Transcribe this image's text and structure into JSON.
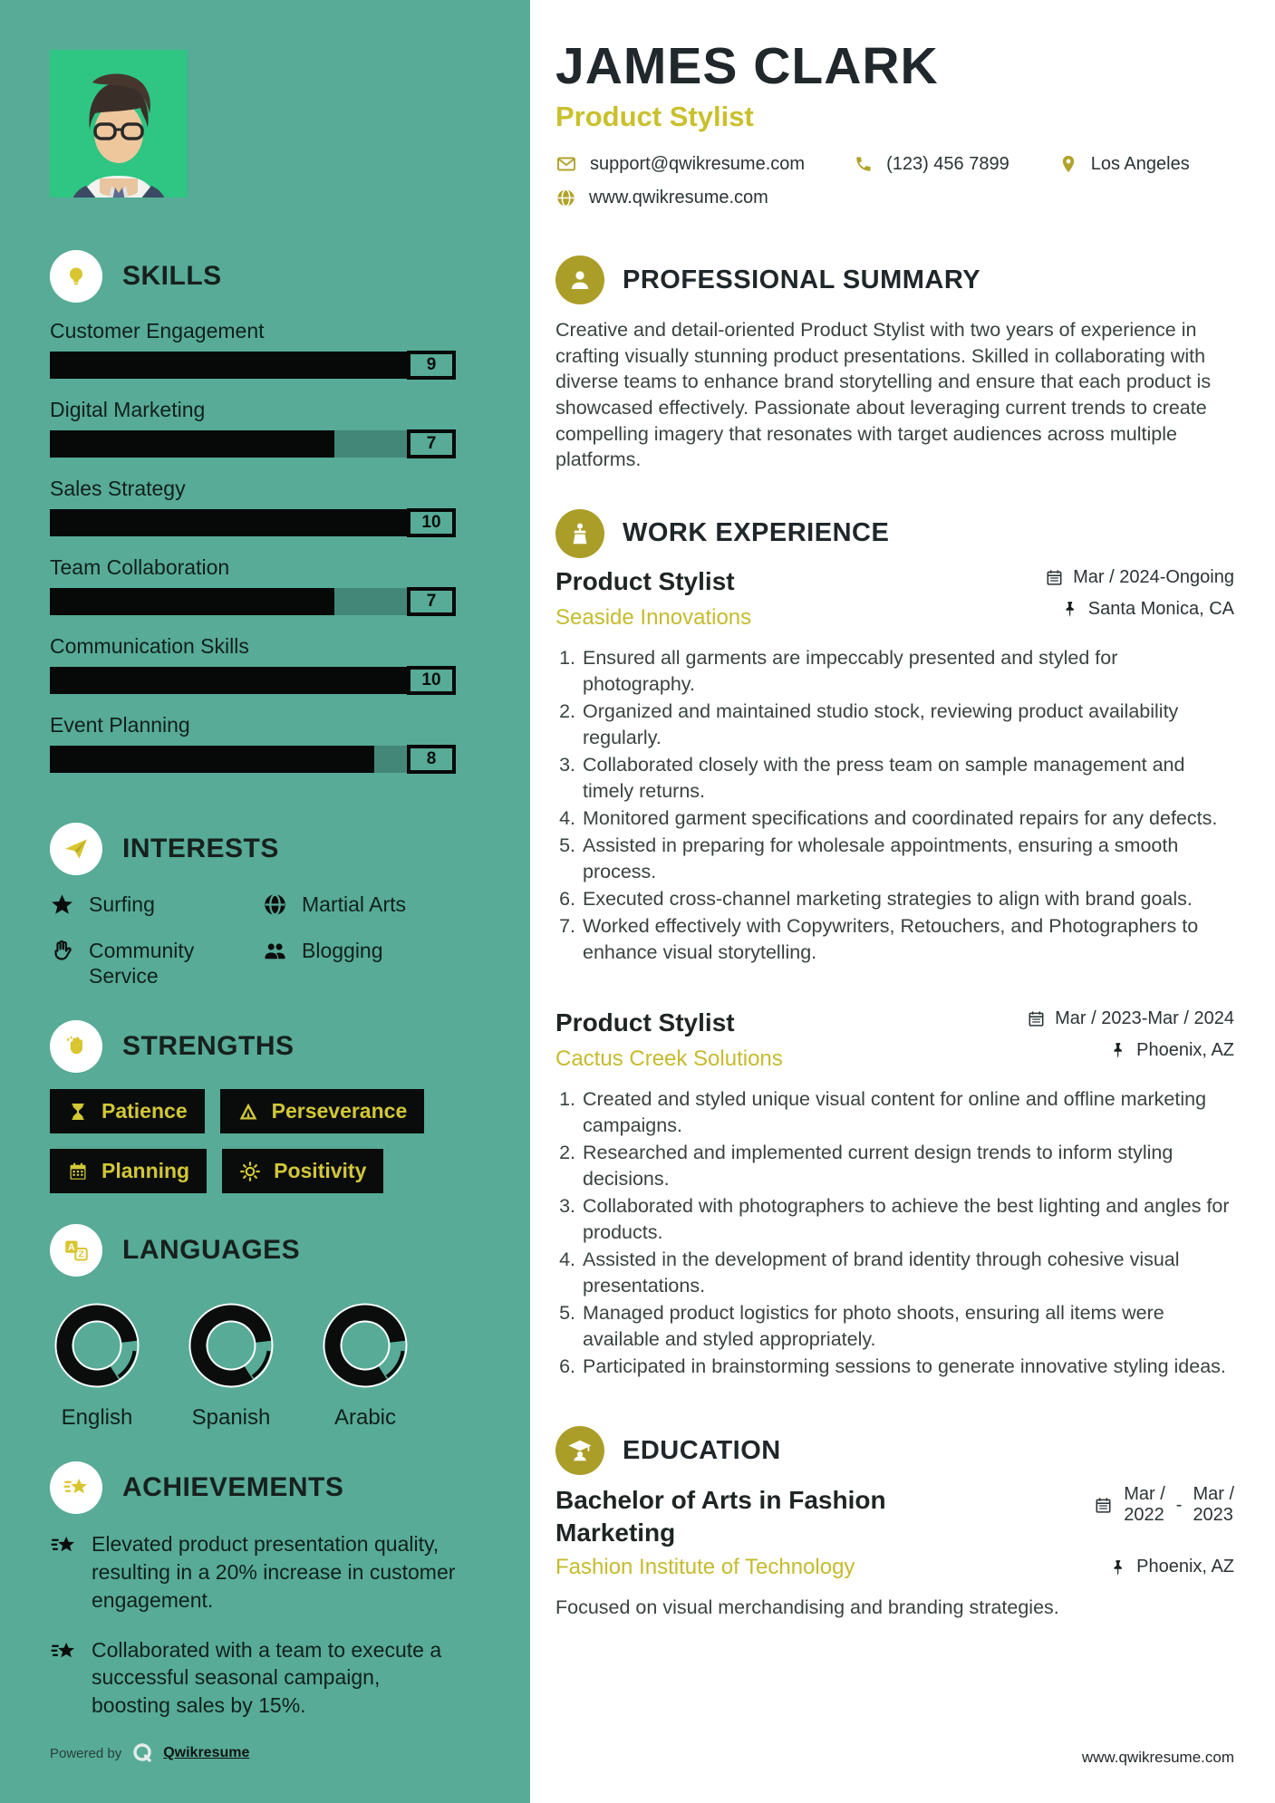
{
  "colors": {
    "sidebar_bg": "#57ab97",
    "accent_yellow": "#c9bf2e",
    "accent_olive": "#ab9e28",
    "bar_black": "#0a0c0b",
    "photo_green": "#2fc583"
  },
  "header": {
    "name": "JAMES CLARK",
    "title": "Product Stylist",
    "email": "support@qwikresume.com",
    "phone": "(123) 456 7899",
    "location": "Los Angeles",
    "website": "www.qwikresume.com"
  },
  "sidebar": {
    "skills": {
      "title": "SKILLS",
      "items": [
        {
          "label": "Customer Engagement",
          "score": 9
        },
        {
          "label": "Digital Marketing",
          "score": 7
        },
        {
          "label": "Sales Strategy",
          "score": 10
        },
        {
          "label": "Team Collaboration",
          "score": 7
        },
        {
          "label": "Communication Skills",
          "score": 10
        },
        {
          "label": "Event Planning",
          "score": 8
        }
      ]
    },
    "interests": {
      "title": "INTERESTS",
      "items": [
        {
          "icon": "star-icon",
          "label": "Surfing"
        },
        {
          "icon": "globe-icon",
          "label": "Martial Arts"
        },
        {
          "icon": "hand-icon",
          "label": "Community Service"
        },
        {
          "icon": "users-icon",
          "label": "Blogging"
        }
      ]
    },
    "strengths": {
      "title": "STRENGTHS",
      "items": [
        {
          "icon": "hourglass-icon",
          "label": "Patience"
        },
        {
          "icon": "road-sign-icon",
          "label": "Perseverance"
        },
        {
          "icon": "calendar-icon",
          "label": "Planning"
        },
        {
          "icon": "sun-icon",
          "label": "Positivity"
        }
      ]
    },
    "languages": {
      "title": "LANGUAGES",
      "items": [
        {
          "label": "English",
          "percent": 84
        },
        {
          "label": "Spanish",
          "percent": 84
        },
        {
          "label": "Arabic",
          "percent": 84
        }
      ]
    },
    "achievements": {
      "title": "ACHIEVEMENTS",
      "items": [
        "Elevated product presentation quality, resulting in a 20% increase in customer engagement.",
        "Collaborated with a team to execute a successful seasonal campaign, boosting sales by 15%."
      ]
    },
    "footer": {
      "powered_by": "Powered by",
      "brand": "Qwikresume"
    }
  },
  "summary": {
    "title": "PROFESSIONAL SUMMARY",
    "text": "Creative and detail-oriented Product Stylist with two years of experience in crafting visually stunning product presentations. Skilled in collaborating with diverse teams to enhance brand storytelling and ensure that each product is showcased effectively. Passionate about leveraging current trends to create compelling imagery that resonates with target audiences across multiple platforms."
  },
  "experience": {
    "title": "WORK EXPERIENCE",
    "jobs": [
      {
        "role": "Product Stylist",
        "dates": "Mar / 2024-Ongoing",
        "company": "Seaside Innovations",
        "location": "Santa Monica, CA",
        "bullets": [
          "Ensured all garments are impeccably presented and styled for photography.",
          "Organized and maintained studio stock, reviewing product availability regularly.",
          "Collaborated closely with the press team on sample management and timely returns.",
          "Monitored garment specifications and coordinated repairs for any defects.",
          "Assisted in preparing for wholesale appointments, ensuring a smooth process.",
          "Executed cross-channel marketing strategies to align with brand goals.",
          "Worked effectively with Copywriters, Retouchers, and Photographers to enhance visual storytelling."
        ]
      },
      {
        "role": "Product Stylist",
        "dates": "Mar / 2023-Mar / 2024",
        "company": "Cactus Creek Solutions",
        "location": "Phoenix, AZ",
        "bullets": [
          "Created and styled unique visual content for online and offline marketing campaigns.",
          "Researched and implemented current design trends to inform styling decisions.",
          "Collaborated with photographers to achieve the best lighting and angles for products.",
          "Assisted in the development of brand identity through cohesive visual presentations.",
          "Managed product logistics for photo shoots, ensuring all items were available and styled appropriately.",
          "Participated in brainstorming sessions to generate innovative styling ideas."
        ]
      }
    ]
  },
  "education": {
    "title": "EDUCATION",
    "degree": "Bachelor of Arts in Fashion Marketing",
    "date_start": [
      "Mar /",
      "2022"
    ],
    "date_dash": "-",
    "date_end": [
      "Mar /",
      "2023"
    ],
    "school": "Fashion Institute of Technology",
    "location": "Phoenix, AZ",
    "description": "Focused on visual merchandising and branding strategies."
  },
  "page_footer": {
    "website": "www.qwikresume.com"
  }
}
